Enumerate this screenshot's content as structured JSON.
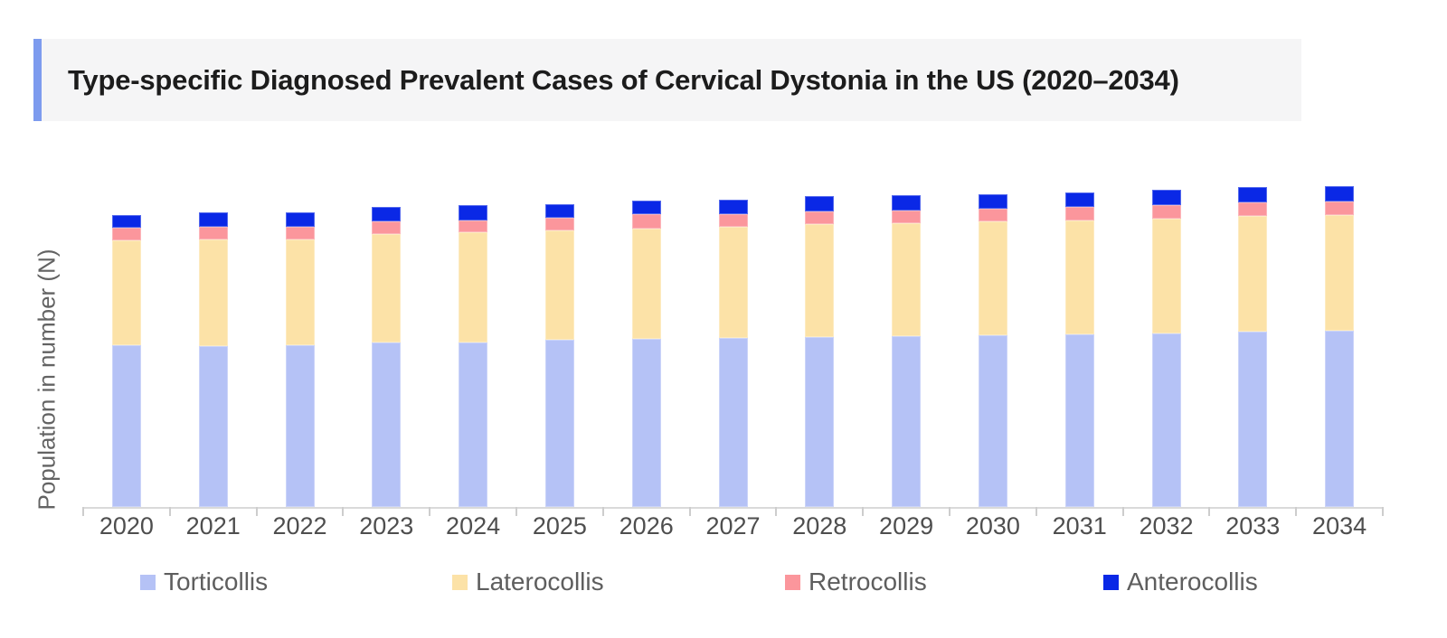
{
  "page": {
    "background": "#ffffff"
  },
  "header": {
    "title": "Type-specific Diagnosed Prevalent Cases of Cervical Dystonia in the US (2020–2034)",
    "accent_color": "#7d9bee",
    "background": "#f5f5f6",
    "text_color": "#1c1c1c"
  },
  "chart_data": {
    "type": "bar",
    "stacked": true,
    "title": "Type-specific Diagnosed Prevalent Cases of Cervical Dystonia in the US (2020–2034)",
    "xlabel": "",
    "ylabel": "Population in number (N)",
    "y_axis_note": "no numeric y-axis or gridlines shown; values are relative units measured from the rendered bars",
    "grid": false,
    "legend_position": "bottom",
    "categories": [
      "2020",
      "2021",
      "2022",
      "2023",
      "2024",
      "2025",
      "2026",
      "2027",
      "2028",
      "2029",
      "2030",
      "2031",
      "2032",
      "2033",
      "2034"
    ],
    "series": [
      {
        "name": "Torticollis",
        "color": "#b5c2f6",
        "values": [
          179,
          178,
          179,
          182,
          182,
          185,
          186,
          187,
          188,
          189,
          190,
          191,
          192,
          194,
          195
        ]
      },
      {
        "name": "Laterocollis",
        "color": "#fce2a7",
        "values": [
          116,
          118,
          117,
          120,
          122,
          121,
          122,
          123,
          125,
          125,
          126,
          126,
          127,
          128,
          128
        ]
      },
      {
        "name": "Retrocollis",
        "color": "#fb969c",
        "values": [
          14,
          14,
          14,
          14,
          13,
          14,
          16,
          14,
          14,
          14,
          14,
          15,
          15,
          15,
          15
        ]
      },
      {
        "name": "Anterocollis",
        "color": "#0a28e6",
        "values": [
          14,
          16,
          16,
          16,
          17,
          15,
          15,
          16,
          17,
          17,
          16,
          16,
          17,
          17,
          17
        ]
      }
    ]
  },
  "axis": {
    "line_color": "#dadada",
    "tick_color": "#cdcdcd",
    "tick_label_color": "#4e4e4e"
  },
  "legend": {
    "text_color": "#5e5e5e",
    "items": [
      "Torticollis",
      "Laterocollis",
      "Retrocollis",
      "Anterocollis"
    ]
  }
}
